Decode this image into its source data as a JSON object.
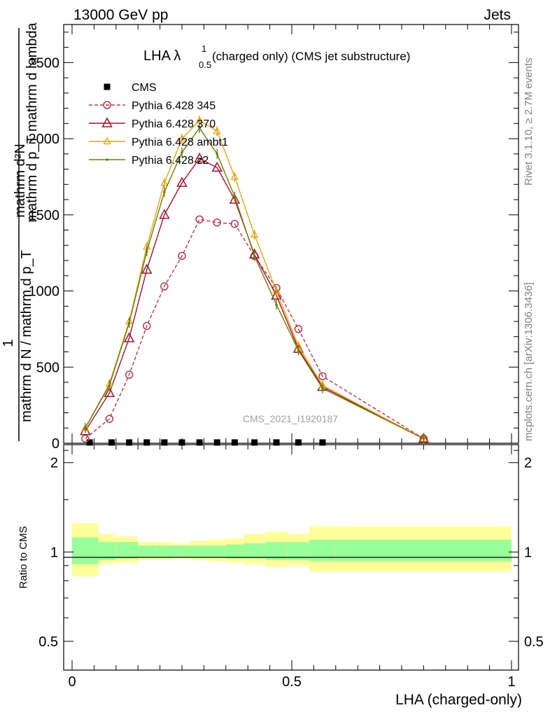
{
  "header": {
    "left": "13000 GeV pp",
    "right": "Jets"
  },
  "side_labels": {
    "rivet": "Rivet 3.1.10, ≥ 2.7M events",
    "mcplots": "mcplots.cern.ch [arXiv:1306.3436]"
  },
  "watermark": "CMS_2021_I1920187",
  "chart_data": [
    {
      "type": "line",
      "title_main": "LHA λ",
      "title_sup": "1",
      "title_sub": "0.5",
      "title_rest": "(charged only) (CMS jet substructure)",
      "ylabel_top": "mathrm d²N",
      "ylabel_top2": "mathrm d p_T mathrm d lambda",
      "ylabel_one": "1",
      "ylabel_bottom": "mathrm d N / mathrm d p_T",
      "xlim": [
        0,
        1
      ],
      "ylim": [
        0,
        2750
      ],
      "yticks": [
        0,
        500,
        1000,
        1500,
        2000,
        2500
      ],
      "yticklabels": [
        "0",
        "500",
        "1000",
        "1500",
        "2000",
        "2500"
      ],
      "legend_position": "top-left",
      "series": [
        {
          "name": "CMS",
          "style": "data",
          "color": "#000000",
          "x": [
            0.04,
            0.09,
            0.13,
            0.17,
            0.21,
            0.25,
            0.29,
            0.33,
            0.37,
            0.415,
            0.465,
            0.515,
            0.57
          ],
          "y": [
            5,
            5,
            5,
            5,
            5,
            5,
            5,
            5,
            5,
            5,
            5,
            5,
            5
          ]
        },
        {
          "name": "Pythia 6.428 345",
          "style": "dashed-circle",
          "color": "#b5384d",
          "x": [
            0.03,
            0.085,
            0.13,
            0.17,
            0.21,
            0.25,
            0.29,
            0.33,
            0.37,
            0.415,
            0.465,
            0.515,
            0.57,
            0.8
          ],
          "y": [
            30,
            160,
            450,
            770,
            1030,
            1230,
            1470,
            1450,
            1440,
            1230,
            1020,
            750,
            440,
            30
          ]
        },
        {
          "name": "Pythia 6.428 370",
          "style": "solid-triangle-open",
          "color": "#a1132b",
          "x": [
            0.03,
            0.085,
            0.13,
            0.17,
            0.21,
            0.25,
            0.29,
            0.33,
            0.37,
            0.415,
            0.465,
            0.515,
            0.57,
            0.8
          ],
          "y": [
            80,
            330,
            690,
            1140,
            1500,
            1710,
            1870,
            1810,
            1600,
            1240,
            970,
            620,
            370,
            30
          ]
        },
        {
          "name": "Pythia 6.428 ambt1",
          "style": "solid-triangle-small",
          "color": "#e8a317",
          "x": [
            0.03,
            0.085,
            0.13,
            0.17,
            0.21,
            0.25,
            0.29,
            0.33,
            0.37,
            0.415,
            0.465,
            0.515,
            0.57,
            0.8
          ],
          "y": [
            100,
            390,
            800,
            1290,
            1710,
            2000,
            2120,
            2050,
            1750,
            1370,
            1000,
            640,
            380,
            30
          ]
        },
        {
          "name": "Pythia 6.428 z2",
          "style": "solid-dot",
          "color": "#6b7d0a",
          "x": [
            0.03,
            0.085,
            0.13,
            0.17,
            0.21,
            0.25,
            0.29,
            0.33,
            0.37,
            0.415,
            0.465,
            0.515,
            0.57,
            0.8
          ],
          "y": [
            100,
            380,
            790,
            1260,
            1650,
            1910,
            2070,
            1900,
            1620,
            1230,
            910,
            610,
            360,
            30
          ]
        }
      ]
    },
    {
      "type": "area",
      "ylabel": "Ratio to CMS",
      "xlabel": "LHA (charged-only)",
      "xlim": [
        0,
        1
      ],
      "ylim": [
        0.4,
        2.3
      ],
      "scale": "log",
      "xticklabels": [
        "0",
        "0.5",
        "1"
      ],
      "yticklabels": [
        "0.5",
        "1",
        "2"
      ],
      "bins": [
        0,
        0.06,
        0.1,
        0.15,
        0.19,
        0.23,
        0.27,
        0.31,
        0.35,
        0.39,
        0.44,
        0.49,
        0.54,
        0.6,
        1.0
      ],
      "inner_band": {
        "color": "#99ff99",
        "low": [
          0.91,
          0.94,
          0.95,
          0.96,
          0.96,
          0.96,
          0.96,
          0.96,
          0.95,
          0.95,
          0.94,
          0.94,
          0.93,
          0.93
        ],
        "high": [
          1.12,
          1.08,
          1.08,
          1.05,
          1.05,
          1.05,
          1.05,
          1.05,
          1.06,
          1.07,
          1.08,
          1.08,
          1.1,
          1.1
        ]
      },
      "outer_band": {
        "color": "#ffff99",
        "low": [
          0.83,
          0.91,
          0.92,
          0.94,
          0.94,
          0.95,
          0.94,
          0.93,
          0.92,
          0.91,
          0.89,
          0.9,
          0.86,
          0.86
        ],
        "high": [
          1.25,
          1.15,
          1.13,
          1.08,
          1.08,
          1.07,
          1.09,
          1.1,
          1.11,
          1.15,
          1.17,
          1.15,
          1.22,
          1.22
        ]
      }
    }
  ]
}
